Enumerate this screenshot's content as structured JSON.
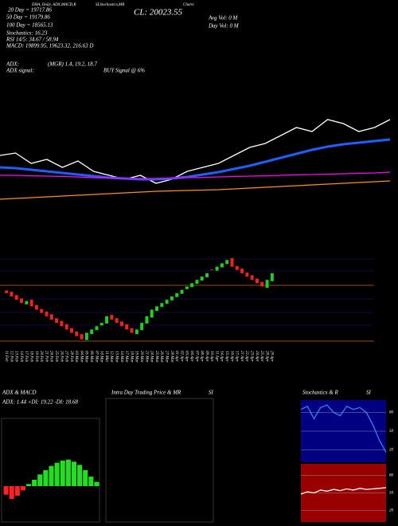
{
  "chart_data": [
    {
      "type": "line",
      "annotations": [
        "20 Day = 19717.86",
        "50 Day = 19179.86",
        "100 Day = 18565.13",
        "Stochastics: 16.23",
        "RSI 14/5: 34.67 / 58.94",
        "MACD: 19899.95, 19623.32, 216.63 D",
        "ADX:",
        "(MGR) 1.4, 19.2, 18.7",
        "ADX signal:",
        "BUY Signal @ 6%",
        "CL: 20023.55",
        "Avg Vol: 0 M",
        "Day Vol: 0 M",
        "EMA, Daily, ADX,MACD,B",
        "SLStochastics,MR",
        "Charts"
      ],
      "ylim": [
        18800,
        20400
      ],
      "series": [
        {
          "name": "Price",
          "color": "#ffffff",
          "values": [
            19450,
            19480,
            19350,
            19400,
            19300,
            19380,
            19250,
            19200,
            19150,
            19200,
            19100,
            19150,
            19250,
            19300,
            19350,
            19450,
            19550,
            19600,
            19700,
            19800,
            19750,
            19900,
            19850,
            19750,
            19800,
            19900
          ]
        },
        {
          "name": "MA",
          "color": "#1f5fff",
          "values": [
            19300,
            19290,
            19270,
            19250,
            19230,
            19210,
            19190,
            19170,
            19160,
            19150,
            19150,
            19160,
            19180,
            19210,
            19240,
            19280,
            19320,
            19370,
            19420,
            19470,
            19520,
            19560,
            19590,
            19610,
            19630,
            19650
          ]
        },
        {
          "name": "MA2",
          "color": "#ff00ff",
          "values": [
            19200,
            19200,
            19195,
            19190,
            19185,
            19180,
            19170,
            19165,
            19160,
            19160,
            19160,
            19165,
            19170,
            19175,
            19180,
            19185,
            19190,
            19195,
            19200,
            19205,
            19210,
            19215,
            19220,
            19225,
            19230,
            19240
          ]
        },
        {
          "name": "MA3",
          "color": "#ff8c1a",
          "values": [
            18900,
            18910,
            18920,
            18930,
            18940,
            18950,
            18960,
            18970,
            18980,
            18990,
            19000,
            19005,
            19010,
            19015,
            19020,
            19030,
            19040,
            19050,
            19060,
            19070,
            19080,
            19090,
            19100,
            19110,
            19120,
            19130
          ]
        }
      ]
    },
    {
      "type": "candlestick",
      "ylim": [
        18950,
        20300
      ],
      "up_color": "#22cc22",
      "down_color": "#ee2222",
      "categories": [
        "11 Feb",
        "12 Feb",
        "13 Feb",
        "14 Feb",
        "17 Feb",
        "18 Feb",
        "19 Feb",
        "20 Feb",
        "21 Feb",
        "24 Feb",
        "25 Feb",
        "26 Feb",
        "27 Feb",
        "28 Feb",
        "03 Mar",
        "04 Mar",
        "05 Mar",
        "06 Mar",
        "07 Mar",
        "10 Mar",
        "11 Mar",
        "12 Mar",
        "13 Mar",
        "14 Mar",
        "17 Mar",
        "18 Mar",
        "19 Mar",
        "20 Mar",
        "21 Mar",
        "24 Mar",
        "25 Mar",
        "26 Mar",
        "27 Mar",
        "28 Mar",
        "01 Apr",
        "02 Apr",
        "03 Apr",
        "04 Apr",
        "07 Apr",
        "08 Apr",
        "09 Apr",
        "10 Apr",
        "11 Apr",
        "14 Apr",
        "15 Apr",
        "16 Apr",
        "17 Apr",
        "21 Apr",
        "22 Apr",
        "23 Apr",
        "24 Apr",
        "25 Apr",
        "28 Apr",
        "29 Apr"
      ],
      "open": [
        19740,
        19720,
        19670,
        19620,
        19530,
        19600,
        19520,
        19460,
        19420,
        19380,
        19320,
        19280,
        19230,
        19170,
        19120,
        19080,
        18990,
        19080,
        19140,
        19210,
        19240,
        19370,
        19320,
        19270,
        19230,
        19170,
        19080,
        19140,
        19240,
        19330,
        19430,
        19490,
        19540,
        19590,
        19640,
        19690,
        19760,
        19790,
        19840,
        19890,
        19940,
        20060,
        20040,
        20090,
        20140,
        20230,
        20110,
        20070,
        20010,
        19970,
        19920,
        19870,
        19780,
        19880
      ],
      "close": [
        19700,
        19650,
        19600,
        19550,
        19580,
        19500,
        19450,
        19400,
        19350,
        19300,
        19250,
        19200,
        19150,
        19100,
        19050,
        19000,
        19100,
        19150,
        19200,
        19250,
        19350,
        19300,
        19250,
        19200,
        19150,
        19100,
        19150,
        19250,
        19350,
        19450,
        19500,
        19550,
        19600,
        19650,
        19700,
        19750,
        19800,
        19850,
        19900,
        19950,
        20000,
        20050,
        20100,
        20150,
        20200,
        20100,
        20050,
        20000,
        19950,
        19900,
        19850,
        19800,
        19900,
        20000
      ]
    },
    {
      "type": "bar",
      "title": "ADX  & MACD",
      "subtitle": "ADX: 1.44  +DI: 19.22  -DI: 18.68",
      "ylim": [
        -300,
        300
      ],
      "up_color": "#22dd22",
      "down_color": "#ff2222",
      "values": [
        -80,
        -120,
        -90,
        -40,
        20,
        60,
        110,
        150,
        190,
        220,
        240,
        250,
        230,
        200,
        150,
        90,
        40
      ]
    },
    {
      "type": "empty",
      "title": "Intra Day Trading Price  & MR",
      "subtitle": "SI"
    },
    {
      "type": "line",
      "title": "Stochastics & R",
      "subtitle": "SI",
      "ylim": [
        0,
        100
      ],
      "yticks": [
        20,
        50,
        80
      ],
      "background": "#000080",
      "series": [
        {
          "name": "Stochastic",
          "color": "#3a7bff",
          "values": [
            85,
            90,
            70,
            88,
            92,
            80,
            75,
            90,
            85,
            88,
            80,
            60,
            35,
            16
          ]
        }
      ]
    },
    {
      "type": "line",
      "ylim": [
        0,
        100
      ],
      "yticks": [
        20,
        50,
        80
      ],
      "background": "#990000",
      "series": [
        {
          "name": "RSI",
          "color": "#ffffff",
          "values": [
            48,
            52,
            50,
            55,
            53,
            56,
            54,
            57,
            55,
            58,
            56,
            57,
            58,
            59
          ]
        }
      ]
    }
  ]
}
